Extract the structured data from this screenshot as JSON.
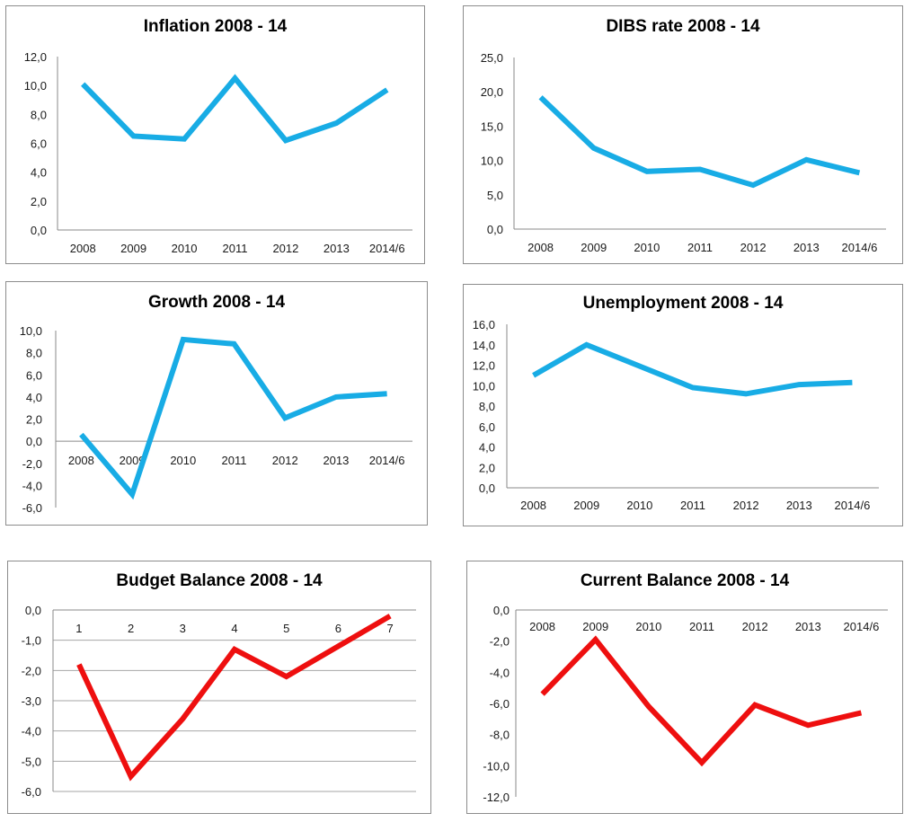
{
  "colors": {
    "blue": "#18ace5",
    "red": "#ee0f0f",
    "axis": "#8a8a8a",
    "grid": "#a6a6a6",
    "text": "#1a1a1a"
  },
  "chart_data": [
    {
      "type": "line",
      "title": "Inflation 2008 - 14",
      "categories": [
        "2008",
        "2009",
        "2010",
        "2011",
        "2012",
        "2013",
        "2014/6"
      ],
      "values": [
        10.1,
        6.5,
        6.3,
        10.5,
        6.2,
        7.4,
        9.7
      ],
      "ylim": [
        0,
        12
      ],
      "yticks": [
        "0,0",
        "2,0",
        "4,0",
        "6,0",
        "8,0",
        "10,0",
        "12,0"
      ],
      "grid": false,
      "color": "blue",
      "xlabel": "",
      "ylabel": ""
    },
    {
      "type": "line",
      "title": "DIBS rate 2008 - 14",
      "categories": [
        "2008",
        "2009",
        "2010",
        "2011",
        "2012",
        "2013",
        "2014/6"
      ],
      "values": [
        19.2,
        11.8,
        8.4,
        8.7,
        6.4,
        10.1,
        8.2
      ],
      "ylim": [
        0,
        25
      ],
      "yticks": [
        "0,0",
        "5,0",
        "10,0",
        "15,0",
        "20,0",
        "25,0"
      ],
      "grid": false,
      "color": "blue",
      "xlabel": "",
      "ylabel": ""
    },
    {
      "type": "line",
      "title": "Growth 2008 - 14",
      "categories": [
        "2008",
        "2009",
        "2010",
        "2011",
        "2012",
        "2013",
        "2014/6"
      ],
      "values": [
        0.6,
        -4.8,
        9.2,
        8.8,
        2.1,
        4.0,
        4.3
      ],
      "ylim": [
        -6,
        10
      ],
      "yticks": [
        "-6,0",
        "-4,0",
        "-2,0",
        "0,0",
        "2,0",
        "4,0",
        "6,0",
        "8,0",
        "10,0"
      ],
      "grid": false,
      "color": "blue",
      "xlabel": "",
      "ylabel": ""
    },
    {
      "type": "line",
      "title": "Unemployment 2008 - 14",
      "categories": [
        "2008",
        "2009",
        "2010",
        "2011",
        "2012",
        "2013",
        "2014/6"
      ],
      "values": [
        11.0,
        14.0,
        11.9,
        9.8,
        9.2,
        10.1,
        10.3
      ],
      "ylim": [
        0,
        16
      ],
      "yticks": [
        "0,0",
        "2,0",
        "4,0",
        "6,0",
        "8,0",
        "10,0",
        "12,0",
        "14,0",
        "16,0"
      ],
      "grid": false,
      "color": "blue",
      "xlabel": "",
      "ylabel": ""
    },
    {
      "type": "line",
      "title": "Budget Balance 2008 - 14",
      "categories": [
        "1",
        "2",
        "3",
        "4",
        "5",
        "6",
        "7"
      ],
      "values": [
        -1.8,
        -5.5,
        -3.6,
        -1.3,
        -2.2,
        -1.2,
        -0.2
      ],
      "ylim": [
        -6,
        0
      ],
      "yticks": [
        "-6,0",
        "-5,0",
        "-4,0",
        "-3,0",
        "-2,0",
        "-1,0",
        "0,0"
      ],
      "grid": true,
      "color": "red",
      "xlabel": "",
      "ylabel": ""
    },
    {
      "type": "line",
      "title": "Current Balance 2008 - 14",
      "categories": [
        "2008",
        "2009",
        "2010",
        "2011",
        "2012",
        "2013",
        "2014/6"
      ],
      "values": [
        -5.4,
        -1.9,
        -6.2,
        -9.8,
        -6.1,
        -7.4,
        -6.6
      ],
      "ylim": [
        -12,
        0
      ],
      "yticks": [
        "-12,0",
        "-10,0",
        "-8,0",
        "-6,0",
        "-4,0",
        "-2,0",
        "0,0"
      ],
      "grid": false,
      "color": "red",
      "xlabel": "",
      "ylabel": ""
    }
  ]
}
